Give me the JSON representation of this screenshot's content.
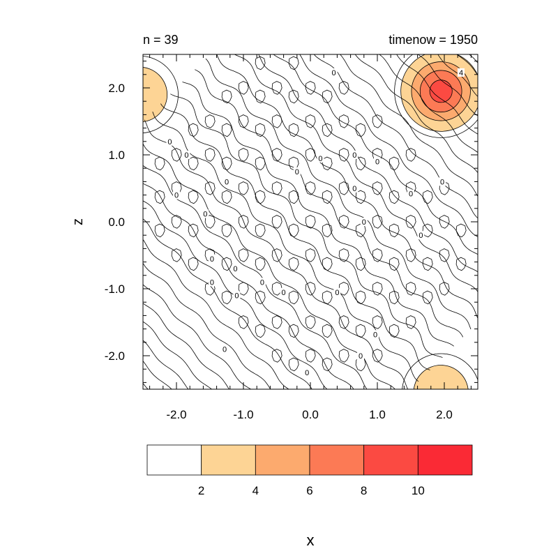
{
  "chart_data": {
    "type": "heatmap",
    "title_left": "n = 39",
    "title_right": "timenow = 1950",
    "xlabel": "x",
    "ylabel": "z",
    "xlim": [
      -2.5,
      2.5
    ],
    "ylim": [
      -2.5,
      2.5
    ],
    "x_ticks": [
      -2.0,
      -1.0,
      0.0,
      1.0,
      2.0
    ],
    "x_tick_labels": [
      "-2.0",
      "-1.0",
      "0.0",
      "1.0",
      "2.0"
    ],
    "y_ticks": [
      -2.0,
      -1.0,
      0.0,
      1.0,
      2.0
    ],
    "y_tick_labels": [
      "-2.0",
      "-1.0",
      "0.0",
      "1.0",
      "2.0"
    ],
    "colorbar": {
      "levels": [
        2,
        4,
        6,
        8,
        10
      ],
      "level_labels": [
        "2",
        "4",
        "6",
        "8",
        "10"
      ],
      "colors": [
        "#ffffff",
        "#fdd495",
        "#fcaa6e",
        "#fc7a55",
        "#fb4a42",
        "#fa2a35"
      ]
    },
    "peaks": [
      {
        "x": 1.95,
        "z": 1.95,
        "max": 9.0,
        "radius": 0.62
      },
      {
        "x": -2.55,
        "z": 1.9,
        "max": 3.4,
        "radius": 0.45
      },
      {
        "x": 1.95,
        "z": -2.55,
        "max": 3.3,
        "radius": 0.45
      }
    ],
    "contour_labels": [
      {
        "text": "4",
        "x": 2.25,
        "z": 2.23
      },
      {
        "text": "0",
        "x": 0.35,
        "z": 2.23
      },
      {
        "text": "0",
        "x": -2.1,
        "z": 1.2
      },
      {
        "text": "0",
        "x": -1.85,
        "z": 1.0
      },
      {
        "text": "0",
        "x": 0.15,
        "z": 0.95
      },
      {
        "text": "0",
        "x": 0.66,
        "z": 1.0
      },
      {
        "text": "0",
        "x": 1.0,
        "z": 0.9
      },
      {
        "text": "0",
        "x": -0.2,
        "z": 0.75
      },
      {
        "text": "0",
        "x": -1.25,
        "z": 0.6
      },
      {
        "text": "0",
        "x": -2.0,
        "z": 0.4
      },
      {
        "text": "0",
        "x": 0.66,
        "z": 0.5
      },
      {
        "text": "0",
        "x": 1.5,
        "z": 0.42
      },
      {
        "text": "0",
        "x": 1.97,
        "z": 0.6
      },
      {
        "text": "0",
        "x": -1.57,
        "z": 0.12
      },
      {
        "text": "0",
        "x": 0.8,
        "z": 0.0
      },
      {
        "text": "0",
        "x": 1.65,
        "z": -0.2
      },
      {
        "text": "0",
        "x": -1.47,
        "z": -0.55
      },
      {
        "text": "0",
        "x": -1.12,
        "z": -0.7
      },
      {
        "text": "0",
        "x": -0.72,
        "z": -0.9
      },
      {
        "text": "0",
        "x": -1.47,
        "z": -0.9
      },
      {
        "text": "0",
        "x": -1.1,
        "z": -1.1
      },
      {
        "text": "0",
        "x": -0.4,
        "z": -1.05
      },
      {
        "text": "0",
        "x": 0.4,
        "z": -1.05
      },
      {
        "text": "0",
        "x": 0.97,
        "z": -1.68
      },
      {
        "text": "0",
        "x": -1.28,
        "z": -1.9
      },
      {
        "text": "0",
        "x": 0.75,
        "z": -2.0
      },
      {
        "text": "0",
        "x": -0.05,
        "z": -2.25
      }
    ]
  }
}
